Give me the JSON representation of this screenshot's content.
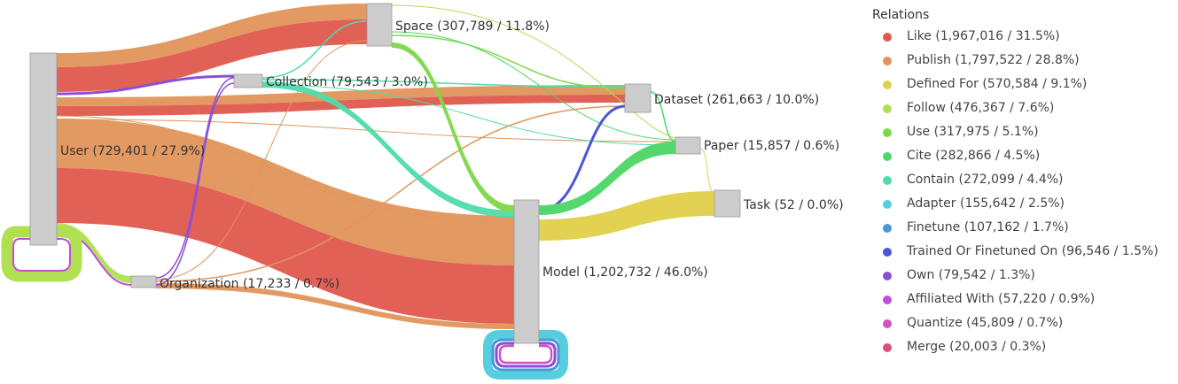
{
  "nodes": [
    {
      "id": "user",
      "label": "User (729,401 / 27.9%)"
    },
    {
      "id": "space",
      "label": "Space (307,789 / 11.8%)"
    },
    {
      "id": "collection",
      "label": "Collection (79,543 / 3.0%)"
    },
    {
      "id": "dataset",
      "label": "Dataset (261,663 / 10.0%)"
    },
    {
      "id": "paper",
      "label": "Paper (15,857 / 0.6%)"
    },
    {
      "id": "task",
      "label": "Task (52 / 0.0%)"
    },
    {
      "id": "model",
      "label": "Model (1,202,732 / 46.0%)"
    },
    {
      "id": "organization",
      "label": "Organization (17,233 / 0.7%)"
    }
  ],
  "legend": {
    "title": "Relations",
    "items": [
      {
        "label": "Like (1,967,016 / 31.5%)",
        "color": "#e0584e"
      },
      {
        "label": "Publish (1,797,522 / 28.8%)",
        "color": "#e0955a"
      },
      {
        "label": "Defined For (570,584 / 9.1%)",
        "color": "#e2d14b"
      },
      {
        "label": "Follow (476,367 / 7.6%)",
        "color": "#b0df52"
      },
      {
        "label": "Use (317,975 / 5.1%)",
        "color": "#7fd84a"
      },
      {
        "label": "Cite (282,866 / 4.5%)",
        "color": "#4ed768"
      },
      {
        "label": "Contain (272,099 / 4.4%)",
        "color": "#4fdcaa"
      },
      {
        "label": "Adapter (155,642 / 2.5%)",
        "color": "#55cfe0"
      },
      {
        "label": "Finetune (107,162 / 1.7%)",
        "color": "#4b97d8"
      },
      {
        "label": "Trained Or Finetuned On (96,546 / 1.5%)",
        "color": "#4c55d8"
      },
      {
        "label": "Own (79,542 / 1.3%)",
        "color": "#8a4fd8"
      },
      {
        "label": "Affiliated With (57,220 / 0.9%)",
        "color": "#c04ed8"
      },
      {
        "label": "Quantize (45,809 / 0.7%)",
        "color": "#d84fc0"
      },
      {
        "label": "Merge (20,003 / 0.3%)",
        "color": "#dc5078"
      }
    ]
  }
}
